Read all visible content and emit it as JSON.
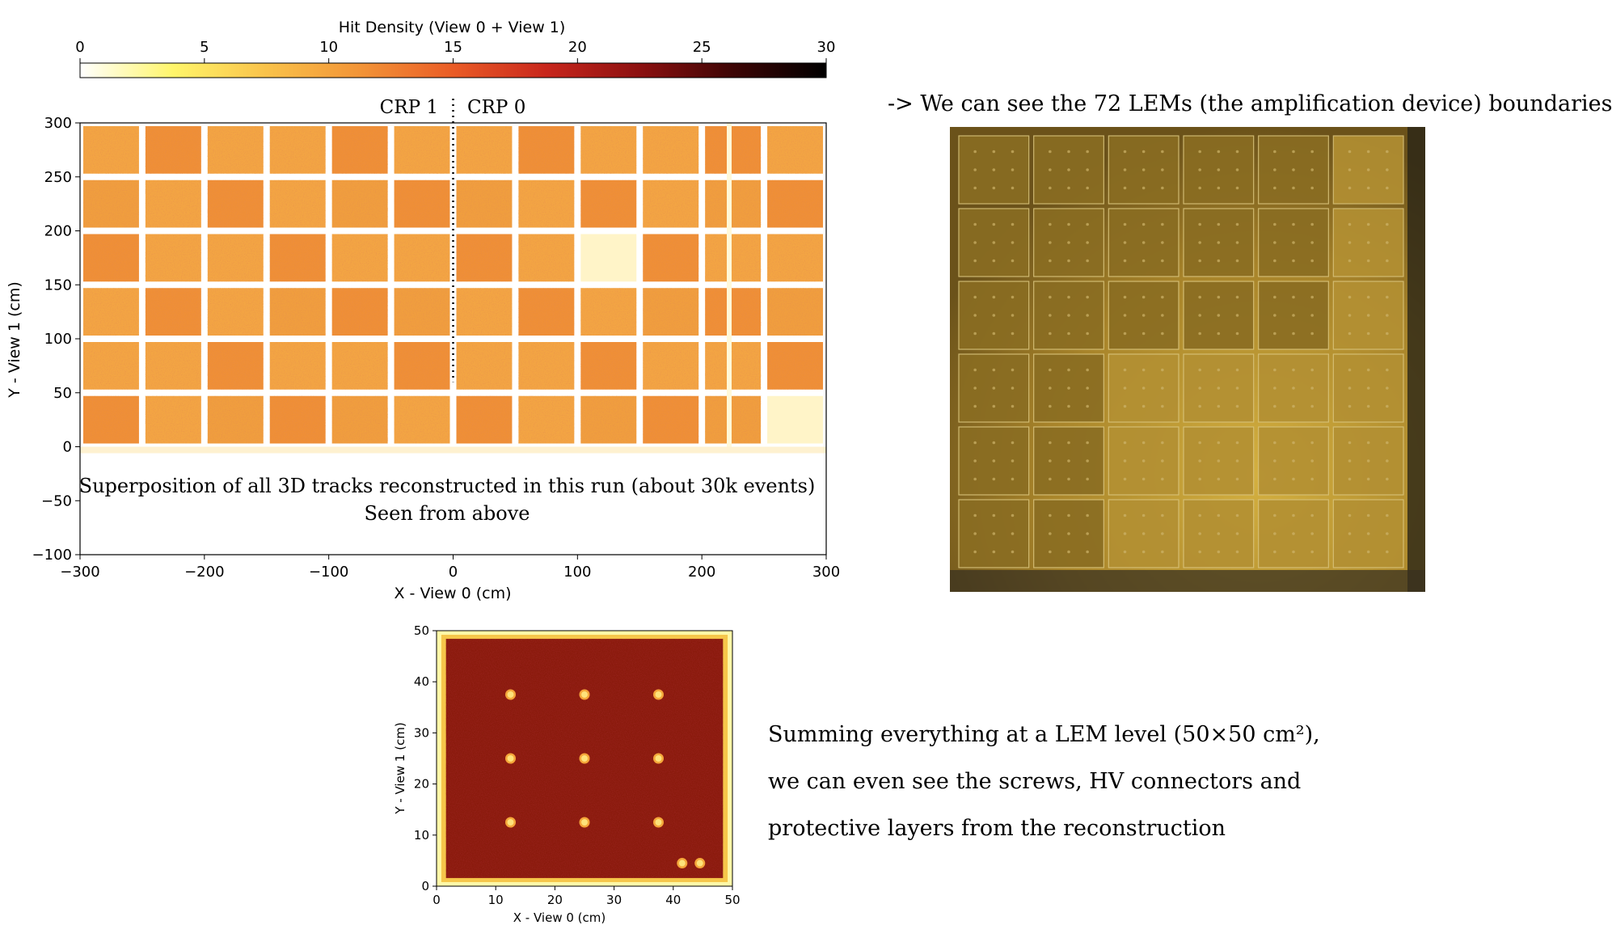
{
  "colors": {
    "cmap": [
      "#ffffff",
      "#fff56a",
      "#f9c24a",
      "#f29437",
      "#ea5c26",
      "#c8261c",
      "#8c1010",
      "#3d0505",
      "#000000"
    ],
    "dense": "#f4a03c",
    "lem_bg": "#8a1a0c",
    "photo_bg": "#b8902e"
  },
  "colorbar": {
    "label": "Hit Density (View 0 + View 1)",
    "ticks": [
      0,
      5,
      10,
      15,
      20,
      25,
      30
    ],
    "range": [
      0,
      30
    ]
  },
  "chart_data": [
    {
      "type": "heatmap",
      "title": "",
      "xlabel": "X - View 0 (cm)",
      "ylabel": "Y - View 1 (cm)",
      "xlim": [
        -300,
        300
      ],
      "ylim": [
        -100,
        300
      ],
      "xticks": [
        -300,
        -200,
        -100,
        0,
        100,
        200,
        300
      ],
      "yticks": [
        -100,
        -50,
        0,
        50,
        100,
        150,
        200,
        250,
        300
      ],
      "grid": false,
      "crp_labels": {
        "left": "CRP 1",
        "right": "CRP 0"
      },
      "divider_x": 0,
      "lem_columns_x": [
        -300,
        -250,
        -200,
        -150,
        -100,
        -50,
        0,
        50,
        100,
        150,
        200,
        250,
        300
      ],
      "lem_rows_y": [
        0,
        50,
        100,
        150,
        200,
        250,
        300
      ],
      "dead_regions": [
        {
          "x": [
            100,
            150
          ],
          "y": [
            150,
            200
          ]
        },
        {
          "x": [
            250,
            300
          ],
          "y": [
            0,
            50
          ]
        }
      ],
      "gap_x": 222,
      "annotation_lines": [
        "Superposition of all 3D tracks reconstructed in this run (about 30k events)",
        "Seen from above"
      ]
    },
    {
      "type": "heatmap",
      "title": "",
      "xlabel": "X - View 0 (cm)",
      "ylabel": "Y - View 1 (cm)",
      "xlim": [
        0,
        50
      ],
      "ylim": [
        0,
        50
      ],
      "xticks": [
        0,
        10,
        20,
        30,
        40,
        50
      ],
      "yticks": [
        0,
        10,
        20,
        30,
        40,
        50
      ],
      "grid": false,
      "screws": [
        [
          12.5,
          37.5
        ],
        [
          25,
          37.5
        ],
        [
          37.5,
          37.5
        ],
        [
          12.5,
          25
        ],
        [
          25,
          25
        ],
        [
          37.5,
          25
        ],
        [
          12.5,
          12.5
        ],
        [
          25,
          12.5
        ],
        [
          37.5,
          12.5
        ],
        [
          41.5,
          4.5
        ],
        [
          44.5,
          4.5
        ]
      ],
      "border_bright": true
    }
  ],
  "photo": {
    "caption": "-> We can see the 72 LEMs (the amplification device) boundaries",
    "columns": 6,
    "rows": 6
  },
  "lem_caption": {
    "line1": "Summing everything at a LEM level (50×50 cm²),",
    "line2": "we can even see the screws, HV connectors and",
    "line3": "protective layers from the reconstruction"
  }
}
